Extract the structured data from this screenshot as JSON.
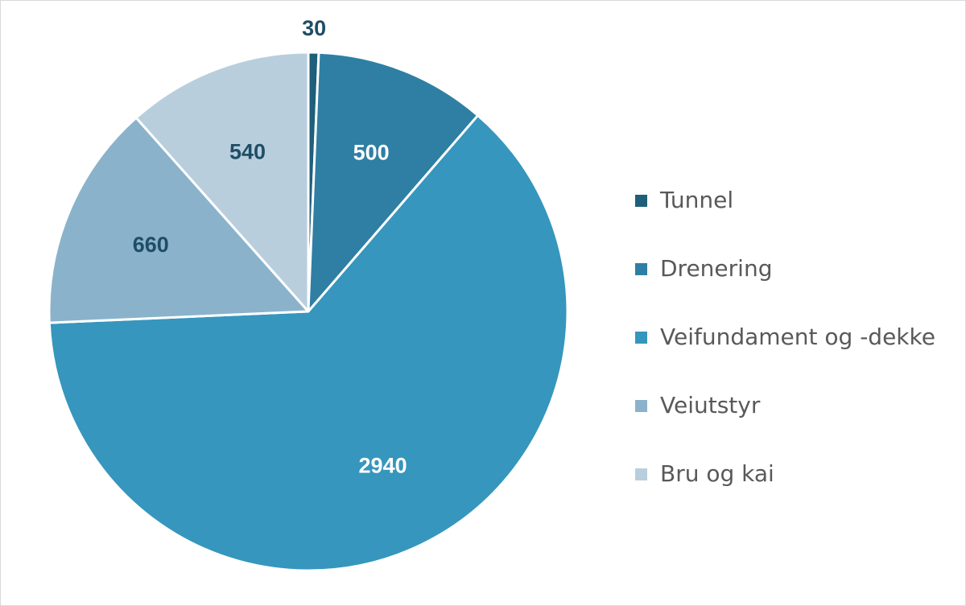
{
  "chart_data": {
    "type": "pie",
    "title": "",
    "categories": [
      "Tunnel",
      "Drenering",
      "Veifundament og -dekke",
      "Veiutstyr",
      "Bru og kai"
    ],
    "values": [
      30,
      500,
      2940,
      660,
      540
    ],
    "colors": [
      "#1f5f7a",
      "#2e7fa3",
      "#3696bd",
      "#8ab3cb",
      "#b9cedd"
    ],
    "label_colors": [
      "#1f4e66",
      "#ffffff",
      "#ffffff",
      "#1f4e66",
      "#1f4e66"
    ],
    "start_angle_deg": 0,
    "direction": "clockwise",
    "data_labels": true,
    "legend_position": "right"
  }
}
